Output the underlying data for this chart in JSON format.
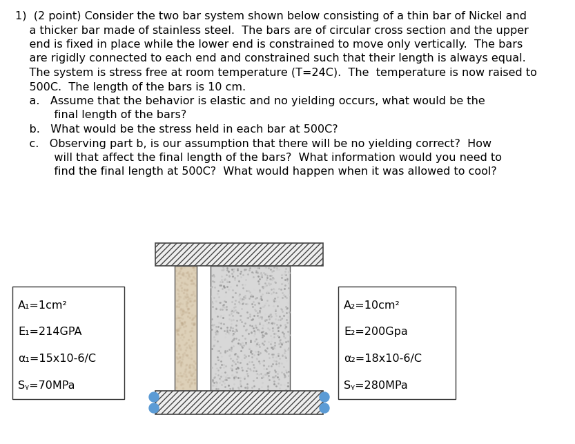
{
  "bg_color": "#ffffff",
  "nickel_color": "#ddd0b8",
  "steel_color": "#d8d8d8",
  "circle_color": "#5b9bd5",
  "hatch_ec": "#444444",
  "bar_ec": "#555555",
  "box_ec": "#333333",
  "main_lines": [
    "1)  (2 point) Consider the two bar system shown below consisting of a thin bar of Nickel and",
    "    a thicker bar made of stainless steel.  The bars are of circular cross section and the upper",
    "    end is fixed in place while the lower end is constrained to move only vertically.  The bars",
    "    are rigidly connected to each end and constrained such that their length is always equal.",
    "    The system is stress free at room temperature (T=24C).  The  temperature is now raised to",
    "    500C.  The length of the bars is 10 cm."
  ],
  "sub_lines": [
    "    a.   Assume that the behavior is elastic and no yielding occurs, what would be the",
    "           final length of the bars?",
    "    b.   What would be the stress held in each bar at 500C?",
    "    c.   Observing part b, is our assumption that there will be no yielding correct?  How",
    "           will that affect the final length of the bars?  What information would you need to",
    "           find the final length at 500C?  What would happen when it was allowed to cool?"
  ],
  "left_box_lines": [
    "A₁=1cm²",
    "E₁=214GPA",
    "α₁=15x10-6/C",
    "Sᵧ=70MPa"
  ],
  "right_box_lines": [
    "A₂=10cm²",
    "E₂=200Gpa",
    "α₂=18x10-6/C",
    "Sᵧ=280MPa"
  ],
  "font_size_pt": 11.5
}
